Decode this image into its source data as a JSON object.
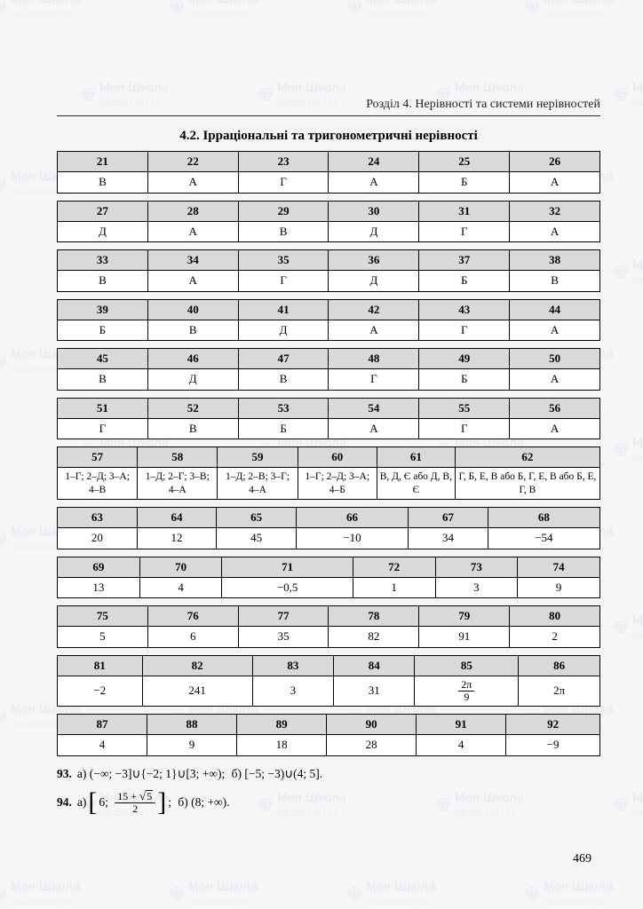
{
  "watermark_text": "Моя Школа",
  "watermark_sub": "OBOZREVATEL",
  "chapter_header": "Розділ 4. Нерівності та системи нерівностей",
  "section_title": "4.2. Ірраціональні та тригонометричні нерівності",
  "page_number": "469",
  "table_groups": [
    {
      "nums": [
        "21",
        "22",
        "23",
        "24",
        "25",
        "26"
      ],
      "ans": [
        "В",
        "А",
        "Г",
        "А",
        "Б",
        "А"
      ]
    },
    {
      "nums": [
        "27",
        "28",
        "29",
        "30",
        "31",
        "32"
      ],
      "ans": [
        "Д",
        "А",
        "В",
        "Д",
        "Г",
        "А"
      ]
    },
    {
      "nums": [
        "33",
        "34",
        "35",
        "36",
        "37",
        "38"
      ],
      "ans": [
        "В",
        "А",
        "Г",
        "Д",
        "Б",
        "В"
      ]
    },
    {
      "nums": [
        "39",
        "40",
        "41",
        "42",
        "43",
        "44"
      ],
      "ans": [
        "Б",
        "В",
        "Д",
        "А",
        "Г",
        "А"
      ]
    },
    {
      "nums": [
        "45",
        "46",
        "47",
        "48",
        "49",
        "50"
      ],
      "ans": [
        "В",
        "Д",
        "В",
        "Г",
        "Б",
        "А"
      ]
    },
    {
      "nums": [
        "51",
        "52",
        "53",
        "54",
        "55",
        "56"
      ],
      "ans": [
        "Г",
        "В",
        "Б",
        "А",
        "Г",
        "А"
      ]
    },
    {
      "nums": [
        "57",
        "58",
        "59",
        "60",
        "61",
        "62"
      ],
      "ans": [
        "1–Г; 2–Д; 3–А; 4–В",
        "1–Д; 2–Г; 3–В; 4–А",
        "1–Д; 2–В; 3–Г; 4–А",
        "1–Г; 2–Д; 3–А; 4–Б",
        "В, Д, Є або Д, В, Є",
        "Г, Б, Е, В або Б, Г, Е, В або Б, Е, Г, В"
      ],
      "small": true
    },
    {
      "nums": [
        "63",
        "64",
        "65",
        "66",
        "67",
        "68"
      ],
      "ans": [
        "20",
        "12",
        "45",
        "−10",
        "34",
        "−54"
      ]
    },
    {
      "nums": [
        "69",
        "70",
        "71",
        "72",
        "73",
        "74"
      ],
      "ans": [
        "13",
        "4",
        "−0,5",
        "1",
        "3",
        "9"
      ]
    },
    {
      "nums": [
        "75",
        "76",
        "77",
        "78",
        "79",
        "80"
      ],
      "ans": [
        "5",
        "6",
        "35",
        "82",
        "91",
        "2"
      ]
    },
    {
      "nums": [
        "81",
        "82",
        "83",
        "84",
        "85",
        "86"
      ],
      "ans": [
        "−2",
        "241",
        "3",
        "31",
        "__FRAC_2PI_9__",
        "2π"
      ]
    },
    {
      "nums": [
        "87",
        "88",
        "89",
        "90",
        "91",
        "92"
      ],
      "ans": [
        "4",
        "9",
        "18",
        "28",
        "4",
        "−9"
      ]
    }
  ],
  "answer_93_label": "93.",
  "answer_93_a": "а) (−∞; −3]∪{−2; 1}∪[3; +∞);",
  "answer_93_b": "б) [−5; −3)∪(4; 5].",
  "answer_94_label": "94.",
  "answer_94_a_prefix": "а)",
  "answer_94_a_open": "[",
  "answer_94_a_num": "6;",
  "answer_94_frac_num": "15 + √5",
  "answer_94_frac_den": "2",
  "answer_94_a_close": "]",
  "answer_94_a_semi": ";",
  "answer_94_b": "б) (8; +∞).",
  "styling": {
    "page_bg": "#f5f6f8",
    "header_cell_bg": "#d9d9d9",
    "answer_cell_bg": "#ffffff",
    "border_color": "#000000",
    "text_color": "#222222",
    "watermark_color": "#5a7aa5",
    "watermark_opacity": 0.08,
    "base_font_size_pt": 10,
    "title_font_size_pt": 11,
    "font_family": "Georgia / Times New Roman serif"
  }
}
